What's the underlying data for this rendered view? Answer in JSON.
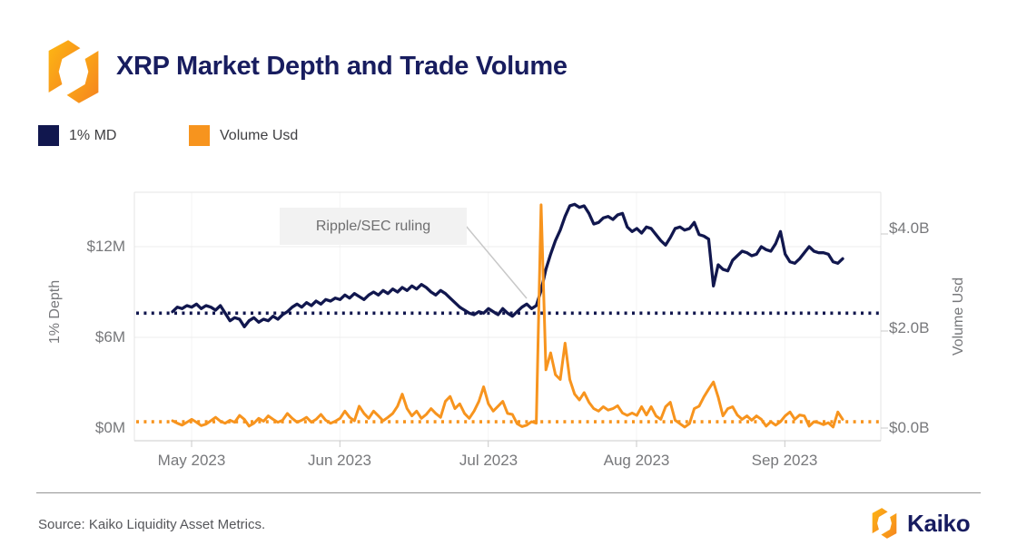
{
  "header": {
    "title": "XRP Market Depth and Trade Volume",
    "logo_icon": "kaiko-hex-logo"
  },
  "legend": [
    {
      "label": "1% MD",
      "color": "#11174E"
    },
    {
      "label": "Volume Usd",
      "color": "#F7941E"
    }
  ],
  "annotation": {
    "text": "Ripple/SEC ruling"
  },
  "chart_data": {
    "type": "line",
    "title": "XRP Market Depth and Trade Volume",
    "grid": "horizontal-light",
    "legend_position": "top-left",
    "x_axis": {
      "tick_labels": [
        "May 2023",
        "Jun 2023",
        "Jul 2023",
        "Aug 2023",
        "Sep 2023"
      ],
      "start_date": "2023-04-27",
      "end_date": "2023-09-14",
      "frequency": "daily"
    },
    "y_left": {
      "label": "1% Depth",
      "tick_labels": [
        "$0M",
        "$6M",
        "$12M"
      ],
      "ticks_musd": [
        0,
        6,
        12
      ],
      "range_musd": [
        0,
        15.6
      ]
    },
    "y_right": {
      "label": "Volume Usd",
      "tick_labels": [
        "$0.0B",
        "$2.0B",
        "$4.0B"
      ],
      "ticks_busd": [
        0,
        2,
        4
      ],
      "range_busd": [
        0,
        4.86
      ]
    },
    "annotations": [
      {
        "text": "Ripple/SEC ruling",
        "points_to_date": "2023-07-13"
      }
    ],
    "series": [
      {
        "name": "1% MD",
        "axis": "left",
        "unit": "USD millions",
        "color": "#11174E",
        "style": "solid",
        "avg_dotted_line_musd": 7.6,
        "values_musd": [
          7.7,
          8.0,
          7.9,
          8.1,
          8.0,
          8.2,
          7.9,
          8.1,
          8.0,
          7.8,
          8.1,
          7.6,
          7.1,
          7.3,
          7.2,
          6.7,
          7.1,
          7.3,
          7.0,
          7.2,
          7.1,
          7.4,
          7.2,
          7.5,
          7.7,
          8.0,
          8.2,
          8.0,
          8.3,
          8.1,
          8.4,
          8.2,
          8.5,
          8.4,
          8.6,
          8.5,
          8.8,
          8.6,
          8.9,
          8.7,
          8.5,
          8.8,
          9.0,
          8.8,
          9.1,
          8.9,
          9.2,
          9.0,
          9.3,
          9.1,
          9.4,
          9.2,
          9.5,
          9.3,
          9.0,
          8.8,
          9.1,
          8.9,
          8.6,
          8.3,
          8.0,
          7.8,
          7.6,
          7.5,
          7.7,
          7.6,
          7.9,
          7.7,
          7.5,
          7.9,
          7.6,
          7.4,
          7.7,
          8.0,
          8.2,
          7.9,
          8.1,
          9.1,
          10.5,
          11.5,
          12.4,
          13.1,
          14.0,
          14.7,
          14.8,
          14.6,
          14.7,
          14.2,
          13.5,
          13.6,
          13.9,
          14.0,
          13.8,
          14.1,
          14.2,
          13.3,
          13.0,
          13.2,
          12.9,
          13.3,
          13.2,
          12.8,
          12.4,
          12.1,
          12.6,
          13.2,
          13.3,
          13.1,
          13.2,
          13.6,
          12.8,
          12.7,
          12.5,
          9.4,
          10.8,
          10.5,
          10.4,
          11.1,
          11.4,
          11.7,
          11.6,
          11.4,
          11.5,
          12.0,
          11.8,
          11.7,
          12.2,
          13.0,
          11.5,
          11.0,
          10.9,
          11.2,
          11.6,
          12.0,
          11.7,
          11.6,
          11.6,
          11.5,
          11.0,
          10.9,
          11.2
        ]
      },
      {
        "name": "Volume Usd",
        "axis": "right",
        "unit": "USD billions",
        "color": "#F7941E",
        "style": "solid",
        "avg_dotted_line_busd": 0.13,
        "peak_busd": 4.6,
        "values_busd": [
          0.15,
          0.1,
          0.06,
          0.12,
          0.18,
          0.12,
          0.05,
          0.08,
          0.15,
          0.22,
          0.14,
          0.1,
          0.16,
          0.12,
          0.26,
          0.18,
          0.04,
          0.1,
          0.2,
          0.14,
          0.25,
          0.18,
          0.12,
          0.16,
          0.3,
          0.2,
          0.12,
          0.16,
          0.22,
          0.12,
          0.18,
          0.28,
          0.16,
          0.1,
          0.14,
          0.2,
          0.35,
          0.22,
          0.15,
          0.45,
          0.3,
          0.2,
          0.35,
          0.25,
          0.15,
          0.22,
          0.3,
          0.45,
          0.7,
          0.4,
          0.25,
          0.35,
          0.2,
          0.28,
          0.4,
          0.3,
          0.22,
          0.55,
          0.65,
          0.4,
          0.5,
          0.3,
          0.2,
          0.35,
          0.55,
          0.85,
          0.5,
          0.35,
          0.45,
          0.55,
          0.3,
          0.28,
          0.09,
          0.03,
          0.06,
          0.13,
          0.1,
          4.6,
          1.2,
          1.55,
          1.1,
          1.0,
          1.75,
          1.0,
          0.7,
          0.58,
          0.73,
          0.53,
          0.4,
          0.35,
          0.44,
          0.37,
          0.4,
          0.46,
          0.31,
          0.26,
          0.31,
          0.26,
          0.44,
          0.27,
          0.44,
          0.25,
          0.18,
          0.44,
          0.53,
          0.16,
          0.09,
          0.02,
          0.09,
          0.4,
          0.45,
          0.64,
          0.8,
          0.95,
          0.64,
          0.25,
          0.4,
          0.44,
          0.27,
          0.18,
          0.25,
          0.16,
          0.25,
          0.18,
          0.04,
          0.13,
          0.06,
          0.13,
          0.25,
          0.33,
          0.18,
          0.27,
          0.25,
          0.04,
          0.13,
          0.11,
          0.07,
          0.11,
          0.02,
          0.33,
          0.18
        ]
      }
    ]
  },
  "footer": {
    "source": "Source: Kaiko Liquidity Asset Metrics.",
    "brand": "Kaiko"
  },
  "colors": {
    "navy": "#11174E",
    "orange": "#F7941E",
    "title_navy": "#181D5F",
    "axis_text": "#77787B",
    "legend_text": "#3F3F42",
    "annotation_bg": "#F2F2F2",
    "annotation_text": "#6F6F70",
    "leader_line": "#C8C8C8",
    "gridline": "#ECECEC",
    "plot_border": "#E4E4E4",
    "footer_text": "#55565A"
  }
}
